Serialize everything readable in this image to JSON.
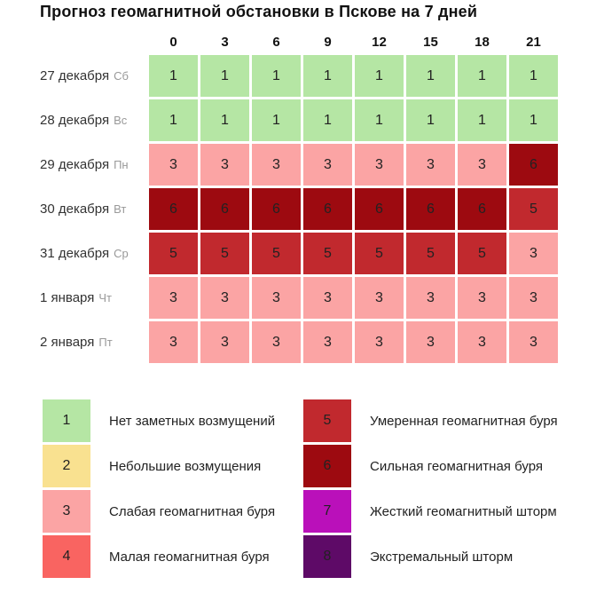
{
  "chart_data": {
    "type": "heatmap",
    "title": "Прогноз геомагнитной обстановки в Пскове на 7 дней",
    "x_ticks": [
      "0",
      "3",
      "6",
      "9",
      "12",
      "15",
      "18",
      "21"
    ],
    "rows": [
      {
        "date": "27 декабря",
        "weekday": "Сб",
        "values": [
          1,
          1,
          1,
          1,
          1,
          1,
          1,
          1
        ]
      },
      {
        "date": "28 декабря",
        "weekday": "Вс",
        "values": [
          1,
          1,
          1,
          1,
          1,
          1,
          1,
          1
        ]
      },
      {
        "date": "29 декабря",
        "weekday": "Пн",
        "values": [
          3,
          3,
          3,
          3,
          3,
          3,
          3,
          6
        ]
      },
      {
        "date": "30 декабря",
        "weekday": "Вт",
        "values": [
          6,
          6,
          6,
          6,
          6,
          6,
          6,
          5
        ]
      },
      {
        "date": "31 декабря",
        "weekday": "Ср",
        "values": [
          5,
          5,
          5,
          5,
          5,
          5,
          5,
          3
        ]
      },
      {
        "date": "1 января",
        "weekday": "Чт",
        "values": [
          3,
          3,
          3,
          3,
          3,
          3,
          3,
          3
        ]
      },
      {
        "date": "2 января",
        "weekday": "Пт",
        "values": [
          3,
          3,
          3,
          3,
          3,
          3,
          3,
          3
        ]
      }
    ],
    "scale": {
      "1": {
        "color": "#b5e6a4",
        "label": "Нет заметных возмущений"
      },
      "2": {
        "color": "#f9e190",
        "label": "Небольшие возмущения"
      },
      "3": {
        "color": "#fba4a4",
        "label": "Слабая геомагнитная буря"
      },
      "4": {
        "color": "#f96461",
        "label": "Малая геомагнитная буря"
      },
      "5": {
        "color": "#c1292e",
        "label": "Умеренная геомагнитная буря"
      },
      "6": {
        "color": "#9d0a10",
        "label": "Сильная геомагнитная буря"
      },
      "7": {
        "color": "#ba10ba",
        "label": "Жесткий геомагнитный шторм"
      },
      "8": {
        "color": "#5e0a67",
        "label": "Экстремальный шторм"
      }
    },
    "legend": {
      "left": [
        "1",
        "2",
        "3",
        "4"
      ],
      "right": [
        "5",
        "6",
        "7",
        "8"
      ]
    }
  }
}
